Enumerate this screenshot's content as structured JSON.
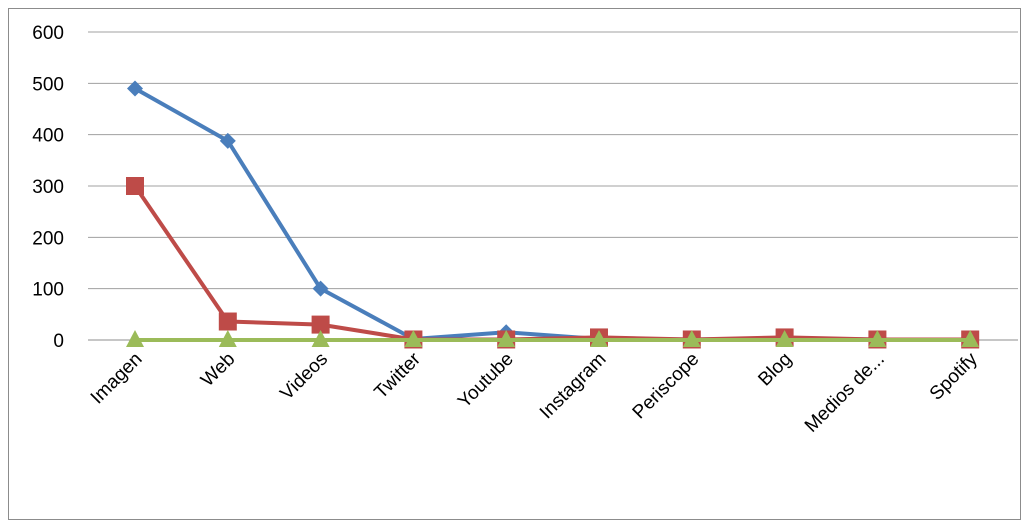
{
  "chart_data": {
    "type": "line",
    "categories": [
      "Imagen",
      "Web",
      "Videos",
      "Twitter",
      "Youtube",
      "Instagram",
      "Periscope",
      "Blog",
      "Medios de...",
      "Spotify"
    ],
    "series": [
      {
        "values": [
          490,
          388,
          100,
          2,
          15,
          2,
          1,
          3,
          1,
          1
        ],
        "color": "#4a7ebb",
        "marker": "diamond"
      },
      {
        "values": [
          300,
          36,
          30,
          1,
          1,
          5,
          1,
          5,
          1,
          1
        ],
        "color": "#be4b48",
        "marker": "square"
      },
      {
        "values": [
          0,
          0,
          0,
          0,
          0,
          0,
          0,
          0,
          0,
          0
        ],
        "color": "#9bbb59",
        "marker": "triangle"
      }
    ],
    "yticks": [
      "0",
      "100",
      "200",
      "300",
      "400",
      "500",
      "600"
    ],
    "ylim": [
      0,
      600
    ],
    "grid": true,
    "legend": "none"
  }
}
